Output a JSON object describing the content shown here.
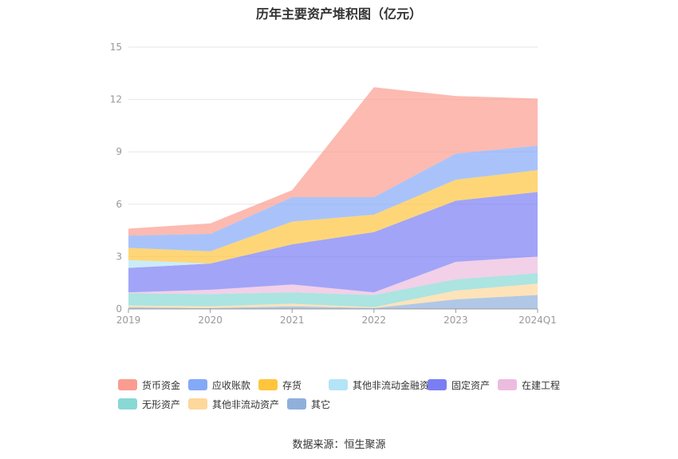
{
  "chart_data": {
    "type": "area",
    "stacked": true,
    "title": "历年主要资产堆积图（亿元）",
    "categories": [
      "2019",
      "2020",
      "2021",
      "2022",
      "2023",
      "2024Q1"
    ],
    "ylim": [
      0,
      15
    ],
    "yticks": [
      0,
      3,
      6,
      9,
      12,
      15
    ],
    "grid": true,
    "legend_position": "bottom",
    "series": [
      {
        "name": "其它",
        "color": "#8fb0db",
        "values": [
          0.1,
          0.05,
          0.15,
          0.05,
          0.55,
          0.8
        ]
      },
      {
        "name": "其他非流动资产",
        "color": "#fed79b",
        "values": [
          0.1,
          0.1,
          0.15,
          0.05,
          0.5,
          0.65
        ]
      },
      {
        "name": "无形资产",
        "color": "#88d8d4",
        "values": [
          0.7,
          0.7,
          0.65,
          0.7,
          0.65,
          0.6
        ]
      },
      {
        "name": "在建工程",
        "color": "#ecbcde",
        "values": [
          0.05,
          0.25,
          0.45,
          0.15,
          1.0,
          0.95
        ]
      },
      {
        "name": "固定资产",
        "color": "#7b7ef3",
        "values": [
          1.4,
          1.5,
          2.3,
          3.45,
          3.5,
          3.7
        ]
      },
      {
        "name": "其他非流动金融资产",
        "color": "#b4e4f7",
        "values": [
          0.45,
          0.0,
          0.0,
          0.0,
          0.0,
          0.0
        ]
      },
      {
        "name": "存货",
        "color": "#ffc53d",
        "values": [
          0.7,
          0.7,
          1.3,
          1.0,
          1.2,
          1.25
        ]
      },
      {
        "name": "应收账款",
        "color": "#84a9f8",
        "values": [
          0.7,
          1.0,
          1.4,
          1.0,
          1.5,
          1.4
        ]
      },
      {
        "name": "货币资金",
        "color": "#fb9c90",
        "values": [
          0.4,
          0.6,
          0.4,
          6.3,
          3.3,
          2.7
        ]
      }
    ],
    "legend_order": [
      "货币资金",
      "应收账款",
      "存货",
      "其他非流动金融资产",
      "固定资产",
      "在建工程",
      "无形资产",
      "其他非流动资产",
      "其它"
    ]
  },
  "source": "数据来源：恒生聚源"
}
